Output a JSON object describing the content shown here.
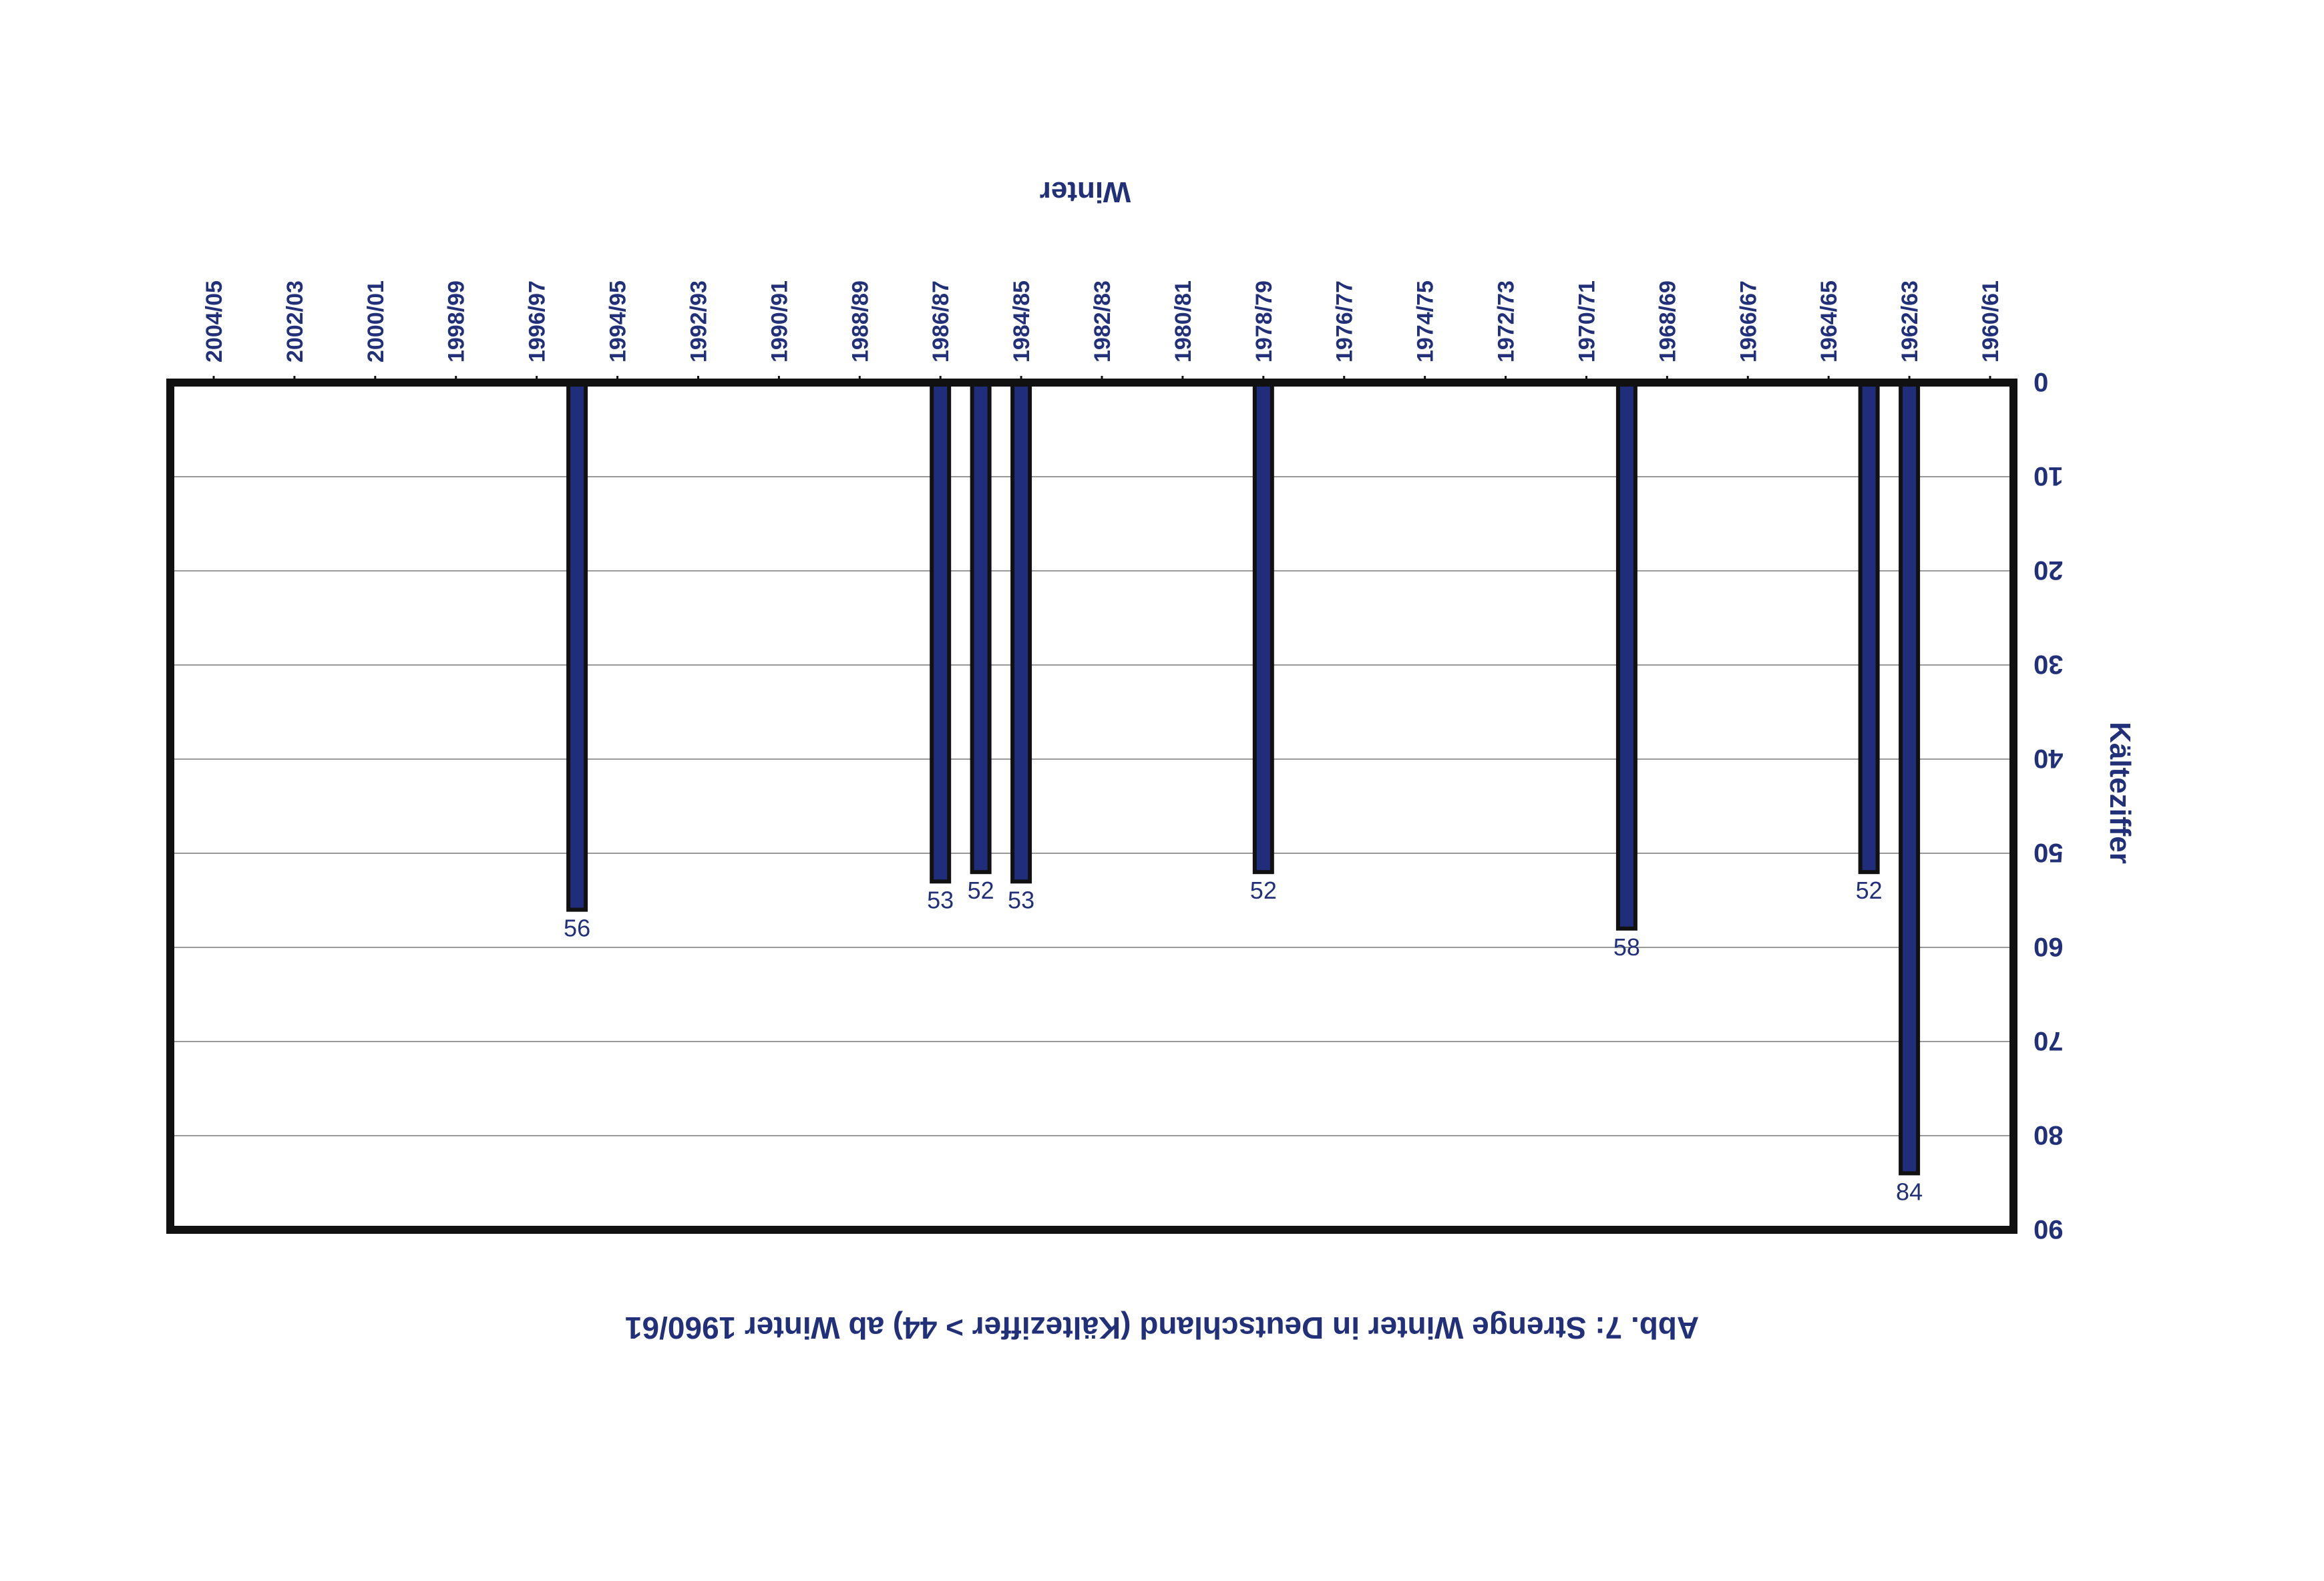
{
  "chart_data": {
    "type": "bar",
    "title": "Abb. 7: Strenge Winter in Deutschland (Kälteziffer > 44) ab Winter 1960/61",
    "xlabel": "Winter",
    "ylabel": "Kälteziffer",
    "ylim": [
      0,
      90
    ],
    "yticks": [
      0,
      10,
      20,
      30,
      40,
      50,
      60,
      70,
      80,
      90
    ],
    "grid": true,
    "x_tick_labels": [
      "1960/61",
      "1962/63",
      "1964/65",
      "1966/67",
      "1968/69",
      "1970/71",
      "1972/73",
      "1974/75",
      "1976/77",
      "1978/79",
      "1980/81",
      "1982/83",
      "1984/85",
      "1986/87",
      "1988/89",
      "1990/91",
      "1992/93",
      "1994/95",
      "1996/97",
      "1998/99",
      "2000/01",
      "2002/03",
      "2004/05"
    ],
    "categories": [
      "1962/63",
      "1963/64",
      "1969/70",
      "1978/79",
      "1984/85",
      "1985/86",
      "1986/87",
      "1995/96"
    ],
    "values": [
      84,
      52,
      58,
      52,
      53,
      52,
      53,
      56
    ],
    "bar_color": "#1f2d7a"
  },
  "colors": {
    "text": "#22307a",
    "bar": "#1f2d7a",
    "frame": "#111111",
    "grid": "#999999"
  }
}
